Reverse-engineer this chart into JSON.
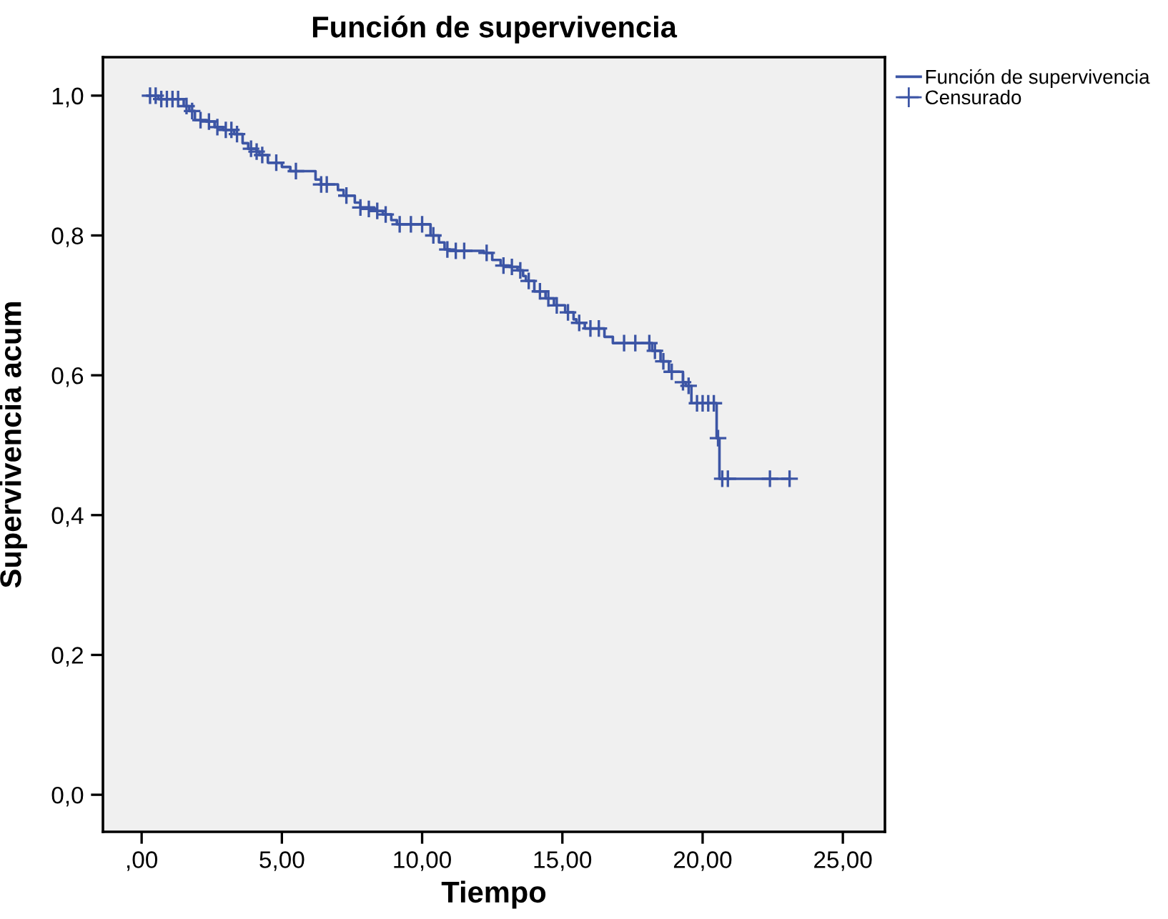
{
  "chart_data": {
    "type": "step",
    "title": "Función de supervivencia",
    "xlabel": "Tiempo",
    "ylabel": "Supervivencia acum",
    "xlim": [
      -1.38,
      26.5
    ],
    "ylim": [
      -0.053,
      1.055
    ],
    "xticks": [
      {
        "value": 0,
        "label": ",00"
      },
      {
        "value": 5,
        "label": "5,00"
      },
      {
        "value": 10,
        "label": "10,00"
      },
      {
        "value": 15,
        "label": "15,00"
      },
      {
        "value": 20,
        "label": "20,00"
      },
      {
        "value": 25,
        "label": "25,00"
      }
    ],
    "yticks": [
      {
        "value": 0,
        "label": "0,0"
      },
      {
        "value": 0.2,
        "label": "0,2"
      },
      {
        "value": 0.4,
        "label": "0,4"
      },
      {
        "value": 0.6,
        "label": "0,6"
      },
      {
        "value": 0.8,
        "label": "0,8"
      },
      {
        "value": 1.0,
        "label": "1,0"
      }
    ],
    "grid": false,
    "legend": "top right",
    "series": [
      {
        "name": "Función de supervivencia",
        "color": "#3c55a5",
        "marker": "none",
        "x": [
          0.2,
          0.6,
          1.5,
          1.7,
          1.9,
          2.3,
          2.6,
          2.9,
          3.3,
          3.6,
          3.8,
          4.1,
          4.2,
          4.5,
          5.0,
          5.3,
          6.2,
          6.4,
          7.0,
          7.2,
          7.6,
          7.8,
          8.3,
          8.6,
          8.9,
          9.1,
          10.3,
          10.6,
          10.8,
          11.0,
          12.2,
          12.5,
          12.8,
          13.1,
          13.4,
          13.6,
          13.7,
          14.0,
          14.4,
          14.7,
          15.1,
          15.4,
          15.5,
          15.8,
          16.5,
          16.8,
          18.2,
          18.5,
          18.8,
          19.3,
          19.4,
          19.6,
          20.5,
          20.6,
          23.1
        ],
        "values": [
          1.0,
          0.995,
          0.985,
          0.978,
          0.965,
          0.963,
          0.955,
          0.951,
          0.945,
          0.932,
          0.924,
          0.92,
          0.915,
          0.904,
          0.898,
          0.892,
          0.88,
          0.873,
          0.865,
          0.857,
          0.847,
          0.84,
          0.835,
          0.83,
          0.822,
          0.816,
          0.8,
          0.79,
          0.78,
          0.778,
          0.775,
          0.765,
          0.757,
          0.755,
          0.75,
          0.742,
          0.735,
          0.72,
          0.71,
          0.7,
          0.69,
          0.68,
          0.675,
          0.667,
          0.655,
          0.646,
          0.635,
          0.62,
          0.605,
          0.59,
          0.585,
          0.56,
          0.51,
          0.452,
          0.452
        ]
      },
      {
        "name": "Censurado",
        "type": "scatter",
        "color": "#3c55a5",
        "marker": "cross",
        "x": [
          0.3,
          0.5,
          0.7,
          0.9,
          1.1,
          1.3,
          1.6,
          1.8,
          2.1,
          2.4,
          2.7,
          3.0,
          3.2,
          3.4,
          3.9,
          4.1,
          4.3,
          4.8,
          5.5,
          6.4,
          6.6,
          7.3,
          7.8,
          8.1,
          8.4,
          8.7,
          9.2,
          9.6,
          10.0,
          10.4,
          10.9,
          11.2,
          11.5,
          12.3,
          12.9,
          13.2,
          13.5,
          13.8,
          14.2,
          14.5,
          14.8,
          15.2,
          15.6,
          16.0,
          16.3,
          17.2,
          17.6,
          18.1,
          18.3,
          18.6,
          18.9,
          19.3,
          19.5,
          19.8,
          20.0,
          20.2,
          20.4,
          20.55,
          20.7,
          20.9,
          22.4,
          23.1
        ],
        "values": [
          1.0,
          1.0,
          0.995,
          0.995,
          0.995,
          0.995,
          0.985,
          0.978,
          0.965,
          0.963,
          0.955,
          0.951,
          0.951,
          0.945,
          0.924,
          0.92,
          0.915,
          0.904,
          0.892,
          0.873,
          0.873,
          0.857,
          0.84,
          0.838,
          0.835,
          0.83,
          0.816,
          0.816,
          0.816,
          0.8,
          0.78,
          0.778,
          0.778,
          0.775,
          0.757,
          0.755,
          0.75,
          0.735,
          0.72,
          0.71,
          0.7,
          0.69,
          0.675,
          0.667,
          0.667,
          0.646,
          0.646,
          0.646,
          0.635,
          0.62,
          0.605,
          0.59,
          0.585,
          0.56,
          0.56,
          0.56,
          0.56,
          0.51,
          0.452,
          0.452,
          0.452,
          0.452
        ]
      }
    ]
  }
}
